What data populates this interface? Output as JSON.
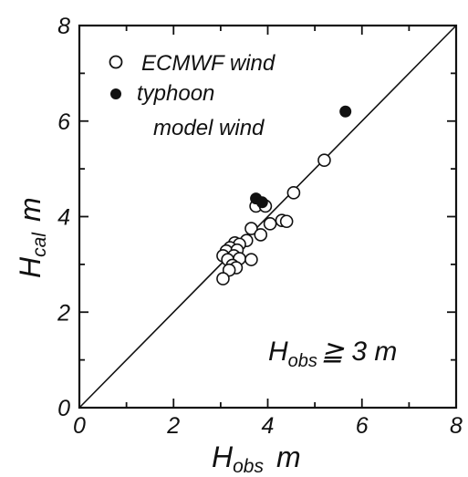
{
  "chart_data": {
    "type": "scatter",
    "xlabel": {
      "main": "H",
      "sub": "obs",
      "unit": "m"
    },
    "ylabel": {
      "main": "H",
      "sub": "cal",
      "unit": "m"
    },
    "xlim": [
      0,
      8
    ],
    "ylim": [
      0,
      8
    ],
    "xticks": [
      0,
      2,
      4,
      6,
      8
    ],
    "yticks": [
      0,
      2,
      4,
      6,
      8
    ],
    "x_tick_labels": [
      "0",
      "2",
      "4",
      "6",
      "8"
    ],
    "y_tick_labels": [
      "0",
      "2",
      "4",
      "6",
      "8"
    ],
    "reference_line": {
      "type": "y=x"
    },
    "grid": false,
    "legend_position": "top-left",
    "annotation": {
      "main": "H",
      "sub": "obs",
      "rest": "≧ 3 m"
    },
    "series": [
      {
        "name": "ECMWF wind",
        "marker": "open-circle",
        "points": [
          {
            "x": 5.2,
            "y": 5.18
          },
          {
            "x": 4.55,
            "y": 4.5
          },
          {
            "x": 3.75,
            "y": 4.22
          },
          {
            "x": 3.95,
            "y": 4.22
          },
          {
            "x": 4.05,
            "y": 3.85
          },
          {
            "x": 4.3,
            "y": 3.92
          },
          {
            "x": 4.4,
            "y": 3.9
          },
          {
            "x": 3.65,
            "y": 3.75
          },
          {
            "x": 3.85,
            "y": 3.62
          },
          {
            "x": 3.55,
            "y": 3.5
          },
          {
            "x": 3.3,
            "y": 3.45
          },
          {
            "x": 3.4,
            "y": 3.42
          },
          {
            "x": 3.2,
            "y": 3.35
          },
          {
            "x": 3.12,
            "y": 3.28
          },
          {
            "x": 3.35,
            "y": 3.3
          },
          {
            "x": 3.05,
            "y": 3.18
          },
          {
            "x": 3.28,
            "y": 3.18
          },
          {
            "x": 3.15,
            "y": 3.1
          },
          {
            "x": 3.4,
            "y": 3.12
          },
          {
            "x": 3.65,
            "y": 3.1
          },
          {
            "x": 3.25,
            "y": 2.98
          },
          {
            "x": 3.33,
            "y": 2.93
          },
          {
            "x": 3.18,
            "y": 2.88
          },
          {
            "x": 3.05,
            "y": 2.7
          }
        ]
      },
      {
        "name": "typhoon model wind",
        "marker": "filled-circle",
        "points": [
          {
            "x": 5.65,
            "y": 6.2
          },
          {
            "x": 3.75,
            "y": 4.38
          },
          {
            "x": 3.88,
            "y": 4.3
          }
        ]
      }
    ]
  },
  "legend": [
    {
      "label": "ECMWF wind",
      "marker": "open-circle"
    },
    {
      "label_line1": "typhoon",
      "label_line2": "model wind",
      "marker": "filled-circle"
    }
  ]
}
